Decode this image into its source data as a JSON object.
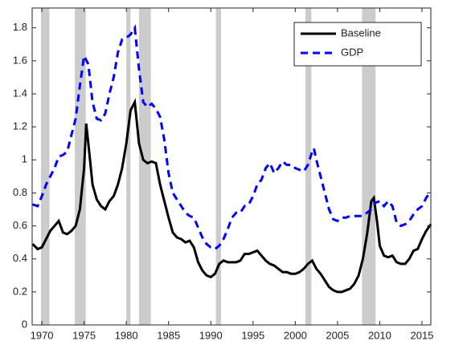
{
  "chart_data": {
    "type": "line",
    "xlim": [
      1968.85,
      2016.05
    ],
    "xticks": [
      1970,
      1975,
      1980,
      1985,
      1990,
      1995,
      2000,
      2005,
      2010,
      2015
    ],
    "ylim": [
      0,
      1.92
    ],
    "yticks": [
      0,
      0.2,
      0.4,
      0.6,
      0.8,
      1,
      1.2,
      1.4,
      1.6,
      1.8
    ],
    "legend_position": "upper right",
    "shaded_periods": [
      [
        1969.9,
        1970.9
      ],
      [
        1973.9,
        1975.2
      ],
      [
        1980.0,
        1980.5
      ],
      [
        1981.5,
        1982.9
      ],
      [
        1990.6,
        1991.2
      ],
      [
        2001.2,
        2001.9
      ],
      [
        2007.9,
        2009.5
      ]
    ],
    "shade_color": "#cccccc",
    "series": [
      {
        "name": "Baseline",
        "color": "#000000",
        "dash": "solid",
        "x": [
          1968.9,
          1969.5,
          1970,
          1970.5,
          1971,
          1971.5,
          1972,
          1972.5,
          1973,
          1973.5,
          1974,
          1974.5,
          1975,
          1975.25,
          1975.5,
          1976,
          1976.5,
          1977,
          1977.5,
          1978,
          1978.5,
          1979,
          1979.5,
          1980,
          1980.5,
          1981,
          1981.5,
          1982,
          1982.5,
          1983,
          1983.5,
          1984,
          1984.5,
          1985,
          1985.5,
          1986,
          1986.5,
          1987,
          1987.5,
          1988,
          1988.5,
          1989,
          1989.5,
          1990,
          1990.5,
          1991,
          1991.5,
          1992,
          1993,
          1993.5,
          1994,
          1994.5,
          1995,
          1995.5,
          1996,
          1996.5,
          1997,
          1997.5,
          1998,
          1998.5,
          1999,
          1999.5,
          2000,
          2000.5,
          2001,
          2001.5,
          2002,
          2002.5,
          2003,
          2003.5,
          2004,
          2004.5,
          2005,
          2005.5,
          2006,
          2006.5,
          2007,
          2007.5,
          2008,
          2008.5,
          2009,
          2009.3,
          2009.7,
          2010,
          2010.5,
          2011,
          2011.5,
          2012,
          2012.5,
          2013,
          2013.5,
          2014,
          2014.5,
          2015,
          2015.5,
          2016.05
        ],
        "values": [
          0.49,
          0.46,
          0.47,
          0.52,
          0.57,
          0.6,
          0.63,
          0.56,
          0.55,
          0.57,
          0.6,
          0.7,
          0.95,
          1.22,
          1.1,
          0.85,
          0.76,
          0.72,
          0.7,
          0.75,
          0.78,
          0.85,
          0.95,
          1.1,
          1.3,
          1.35,
          1.1,
          1.0,
          0.98,
          0.99,
          0.98,
          0.85,
          0.75,
          0.65,
          0.56,
          0.53,
          0.52,
          0.5,
          0.51,
          0.47,
          0.38,
          0.33,
          0.3,
          0.29,
          0.31,
          0.37,
          0.39,
          0.38,
          0.38,
          0.39,
          0.43,
          0.43,
          0.44,
          0.45,
          0.42,
          0.39,
          0.37,
          0.36,
          0.34,
          0.32,
          0.32,
          0.31,
          0.31,
          0.32,
          0.34,
          0.37,
          0.39,
          0.34,
          0.31,
          0.27,
          0.23,
          0.21,
          0.2,
          0.2,
          0.21,
          0.22,
          0.25,
          0.3,
          0.4,
          0.55,
          0.75,
          0.77,
          0.62,
          0.48,
          0.42,
          0.41,
          0.42,
          0.38,
          0.37,
          0.37,
          0.4,
          0.45,
          0.46,
          0.52,
          0.57,
          0.61
        ]
      },
      {
        "name": "GDP",
        "color": "#0000ff",
        "dash": "dashed",
        "x": [
          1968.9,
          1969.5,
          1970,
          1970.5,
          1971,
          1971.5,
          1972,
          1972.5,
          1973,
          1973.5,
          1974,
          1974.5,
          1975,
          1975.5,
          1976,
          1976.5,
          1977,
          1977.5,
          1978,
          1978.5,
          1979,
          1979.5,
          1980,
          1980.5,
          1981,
          1981.5,
          1982,
          1982.5,
          1983,
          1983.5,
          1984,
          1984.5,
          1985,
          1985.5,
          1986,
          1986.5,
          1987,
          1987.5,
          1988,
          1988.5,
          1989,
          1989.5,
          1990,
          1990.5,
          1991,
          1991.5,
          1992,
          1992.5,
          1993,
          1993.5,
          1994,
          1994.5,
          1995,
          1995.5,
          1996,
          1996.5,
          1997,
          1997.5,
          1998,
          1998.5,
          1999,
          1999.5,
          2000,
          2000.5,
          2001,
          2001.5,
          2002,
          2002.2,
          2002.5,
          2003,
          2003.5,
          2004,
          2004.5,
          2005,
          2005.5,
          2006,
          2006.5,
          2007,
          2007.5,
          2008,
          2008.5,
          2009,
          2009.5,
          2010,
          2010.5,
          2011,
          2011.5,
          2012,
          2012.5,
          2013,
          2013.5,
          2014,
          2014.5,
          2015,
          2015.5,
          2016.05
        ],
        "values": [
          0.73,
          0.72,
          0.78,
          0.85,
          0.9,
          0.95,
          1.02,
          1.03,
          1.05,
          1.15,
          1.25,
          1.45,
          1.63,
          1.58,
          1.35,
          1.25,
          1.24,
          1.28,
          1.4,
          1.5,
          1.65,
          1.73,
          1.74,
          1.76,
          1.8,
          1.55,
          1.35,
          1.32,
          1.34,
          1.31,
          1.26,
          1.12,
          0.92,
          0.8,
          0.76,
          0.72,
          0.68,
          0.66,
          0.65,
          0.59,
          0.53,
          0.49,
          0.47,
          0.46,
          0.48,
          0.52,
          0.58,
          0.65,
          0.68,
          0.68,
          0.72,
          0.73,
          0.78,
          0.85,
          0.88,
          0.95,
          0.98,
          0.92,
          0.95,
          0.99,
          0.97,
          0.97,
          0.95,
          0.94,
          0.93,
          0.97,
          1.05,
          1.07,
          1.0,
          0.9,
          0.8,
          0.7,
          0.64,
          0.63,
          0.65,
          0.65,
          0.66,
          0.66,
          0.66,
          0.66,
          0.68,
          0.7,
          0.74,
          0.75,
          0.72,
          0.75,
          0.72,
          0.62,
          0.6,
          0.61,
          0.63,
          0.67,
          0.7,
          0.72,
          0.77,
          0.81
        ]
      }
    ]
  }
}
